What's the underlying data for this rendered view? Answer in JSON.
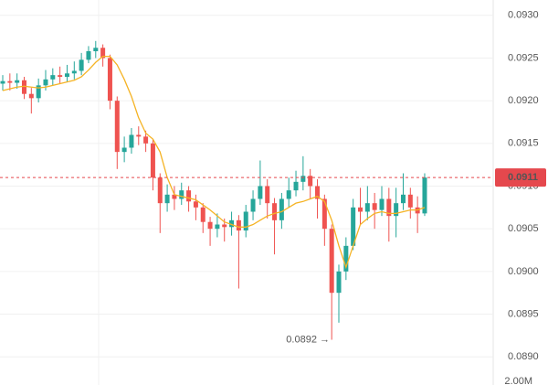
{
  "chart_data": {
    "type": "candlestick",
    "open": [
      0.0922,
      0.09223,
      0.09221,
      0.09224,
      0.09208,
      0.09203,
      0.09218,
      0.09225,
      0.0923,
      0.09228,
      0.09232,
      0.09235,
      0.09248,
      0.09258,
      0.09262,
      0.0925,
      0.092,
      0.0914,
      0.09145,
      0.0916,
      0.09158,
      0.0915,
      0.0911,
      0.0908,
      0.0909,
      0.09085,
      0.09095,
      0.09082,
      0.09075,
      0.09058,
      0.0905,
      0.09055,
      0.09052,
      0.0906,
      0.09048,
      0.0907,
      0.09085,
      0.091,
      0.0908,
      0.0906,
      0.09085,
      0.09095,
      0.09105,
      0.09112,
      0.091,
      0.09085,
      0.0905,
      0.08975,
      0.09,
      0.0903,
      0.09075,
      0.0907,
      0.0908,
      0.09072,
      0.09085,
      0.09065,
      0.0908,
      0.0909,
      0.09075,
      0.09068
    ],
    "high": [
      0.0923,
      0.09232,
      0.09232,
      0.09228,
      0.09215,
      0.09226,
      0.09236,
      0.09238,
      0.0924,
      0.09242,
      0.09246,
      0.09256,
      0.09264,
      0.0927,
      0.09266,
      0.09254,
      0.09205,
      0.09158,
      0.09168,
      0.0917,
      0.09165,
      0.09155,
      0.09115,
      0.09102,
      0.091,
      0.09104,
      0.091,
      0.0909,
      0.0908,
      0.09064,
      0.09068,
      0.09062,
      0.0907,
      0.09066,
      0.09078,
      0.09095,
      0.0913,
      0.09108,
      0.09086,
      0.09092,
      0.0911,
      0.09118,
      0.09135,
      0.0912,
      0.09108,
      0.0909,
      0.09055,
      0.09008,
      0.0904,
      0.09085,
      0.09098,
      0.091,
      0.09092,
      0.091,
      0.09098,
      0.09098,
      0.09115,
      0.09098,
      0.09088,
      0.09115
    ],
    "low": [
      0.09212,
      0.09212,
      0.09214,
      0.09202,
      0.09185,
      0.09198,
      0.09212,
      0.09218,
      0.0922,
      0.09222,
      0.09225,
      0.0923,
      0.09244,
      0.0925,
      0.0924,
      0.0919,
      0.0912,
      0.09128,
      0.09138,
      0.09148,
      0.0914,
      0.09095,
      0.09045,
      0.0907,
      0.09072,
      0.09078,
      0.0907,
      0.0906,
      0.09045,
      0.0903,
      0.0904,
      0.09035,
      0.09042,
      0.0898,
      0.0904,
      0.0906,
      0.09078,
      0.09062,
      0.0902,
      0.0905,
      0.09075,
      0.09088,
      0.09095,
      0.09085,
      0.09062,
      0.0903,
      0.0892,
      0.0894,
      0.0899,
      0.09025,
      0.09055,
      0.0906,
      0.0905,
      0.09065,
      0.09035,
      0.0904,
      0.09072,
      0.09062,
      0.09045,
      0.09065
    ],
    "close": [
      0.09223,
      0.09221,
      0.09224,
      0.09208,
      0.09203,
      0.09218,
      0.09225,
      0.0923,
      0.09228,
      0.09232,
      0.09235,
      0.09248,
      0.09258,
      0.09262,
      0.0925,
      0.092,
      0.0914,
      0.09145,
      0.0916,
      0.09158,
      0.0915,
      0.0911,
      0.0908,
      0.0909,
      0.09085,
      0.09095,
      0.09082,
      0.09075,
      0.09058,
      0.0905,
      0.09055,
      0.09052,
      0.0906,
      0.09048,
      0.0907,
      0.09085,
      0.091,
      0.0908,
      0.0906,
      0.09085,
      0.09095,
      0.09105,
      0.09112,
      0.091,
      0.09085,
      0.0905,
      0.08975,
      0.09,
      0.0903,
      0.09075,
      0.0907,
      0.0908,
      0.09072,
      0.09085,
      0.09065,
      0.0908,
      0.0909,
      0.09075,
      0.09068,
      0.0911
    ],
    "moving_average": [
      0.09212,
      0.09214,
      0.09216,
      0.09217,
      0.09216,
      0.09215,
      0.09216,
      0.09218,
      0.0922,
      0.09222,
      0.09224,
      0.09228,
      0.09236,
      0.09245,
      0.09252,
      0.09252,
      0.09242,
      0.09225,
      0.09205,
      0.0918,
      0.09162,
      0.09155,
      0.0914,
      0.0911,
      0.0909,
      0.09088,
      0.09086,
      0.09084,
      0.09078,
      0.09072,
      0.09065,
      0.09058,
      0.09055,
      0.09052,
      0.09052,
      0.09055,
      0.0906,
      0.09065,
      0.09068,
      0.0907,
      0.09075,
      0.0908,
      0.09082,
      0.09085,
      0.09088,
      0.09082,
      0.0906,
      0.0903,
      0.09005,
      0.0903,
      0.09055,
      0.09062,
      0.09068,
      0.0907,
      0.09068,
      0.09068,
      0.0907,
      0.09072,
      0.09072,
      0.09075
    ],
    "up_color": "#26a69a",
    "down_color": "#ef5350",
    "ma_color": "#f5b324",
    "ylim": [
      0.08867,
      0.09318
    ],
    "yticks": [
      {
        "value": 0.089,
        "label": "0.0890"
      },
      {
        "value": 0.0895,
        "label": "0.0895"
      },
      {
        "value": 0.09,
        "label": "0.0900"
      },
      {
        "value": 0.0905,
        "label": "0.0905"
      },
      {
        "value": 0.091,
        "label": "0.0910"
      },
      {
        "value": 0.0915,
        "label": "0.0915"
      },
      {
        "value": 0.092,
        "label": "0.0920"
      },
      {
        "value": 0.0925,
        "label": "0.0925"
      },
      {
        "value": 0.093,
        "label": "0.0930"
      }
    ],
    "grid": true,
    "last_price": 0.0911,
    "low_annotation": {
      "value": 0.0892,
      "label": "0.0892 →"
    },
    "volume_axis_label": "2.00M"
  }
}
